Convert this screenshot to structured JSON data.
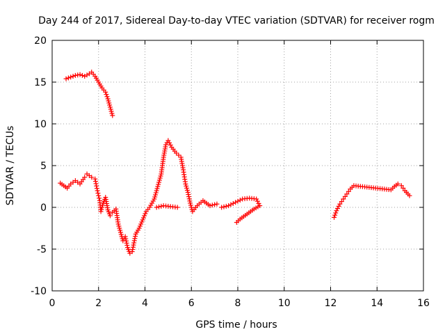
{
  "chart_data": {
    "type": "scatter",
    "title": "Day 244 of 2017, Sidereal Day-to-day VTEC variation (SDTVAR) for receiver rogm",
    "xlabel": "GPS time / hours",
    "ylabel": "SDTVAR / TECUs",
    "xlim": [
      0,
      16
    ],
    "ylim": [
      -10,
      20
    ],
    "xticks": [
      0,
      2,
      4,
      6,
      8,
      10,
      12,
      14,
      16
    ],
    "yticks": [
      -10,
      -5,
      0,
      5,
      10,
      15,
      20
    ],
    "xtick_labels": [
      "0",
      "2",
      "4",
      "6",
      "8",
      "10",
      "12",
      "14",
      "16"
    ],
    "ytick_labels": [
      "-10",
      "-5",
      "0",
      "5",
      "10",
      "15",
      "20"
    ],
    "grid": true,
    "marker": "+",
    "color": "#ff0000",
    "series": [
      {
        "values": [
          [
            0.6,
            15.4
          ],
          [
            0.8,
            15.6
          ],
          [
            1.0,
            15.8
          ],
          [
            1.2,
            15.9
          ],
          [
            1.4,
            15.7
          ],
          [
            1.6,
            16.0
          ],
          [
            1.7,
            16.2
          ],
          [
            1.85,
            15.7
          ],
          [
            2.0,
            15.0
          ],
          [
            2.15,
            14.3
          ],
          [
            2.3,
            13.8
          ],
          [
            2.4,
            13.0
          ],
          [
            2.5,
            12.0
          ],
          [
            2.6,
            11.0
          ],
          [
            0.35,
            2.9
          ],
          [
            0.5,
            2.6
          ],
          [
            0.65,
            2.3
          ],
          [
            0.8,
            2.8
          ],
          [
            1.0,
            3.2
          ],
          [
            1.2,
            2.8
          ],
          [
            1.4,
            3.6
          ],
          [
            1.5,
            4.0
          ],
          [
            1.7,
            3.6
          ],
          [
            1.85,
            3.4
          ],
          [
            1.95,
            2.0
          ],
          [
            2.05,
            0.8
          ],
          [
            2.1,
            -0.5
          ],
          [
            2.2,
            0.5
          ],
          [
            2.3,
            1.2
          ],
          [
            2.4,
            -0.3
          ],
          [
            2.5,
            -1.0
          ],
          [
            2.6,
            -0.6
          ],
          [
            2.75,
            -0.2
          ],
          [
            2.85,
            -2.0
          ],
          [
            2.95,
            -3.0
          ],
          [
            3.05,
            -4.0
          ],
          [
            3.15,
            -3.5
          ],
          [
            3.25,
            -4.8
          ],
          [
            3.35,
            -5.5
          ],
          [
            3.45,
            -5.3
          ],
          [
            3.6,
            -3.2
          ],
          [
            3.75,
            -2.5
          ],
          [
            3.9,
            -1.5
          ],
          [
            4.05,
            -0.5
          ],
          [
            4.2,
            0.0
          ],
          [
            4.4,
            1.0
          ],
          [
            4.55,
            2.5
          ],
          [
            4.7,
            4.0
          ],
          [
            4.8,
            6.0
          ],
          [
            4.9,
            7.5
          ],
          [
            5.0,
            8.0
          ],
          [
            5.15,
            7.2
          ],
          [
            5.35,
            6.5
          ],
          [
            5.55,
            6.0
          ],
          [
            5.65,
            4.5
          ],
          [
            5.75,
            2.8
          ],
          [
            5.85,
            1.8
          ],
          [
            5.95,
            0.5
          ],
          [
            6.05,
            -0.5
          ],
          [
            6.25,
            0.2
          ],
          [
            6.5,
            0.8
          ],
          [
            6.8,
            0.2
          ],
          [
            7.1,
            0.4
          ],
          [
            4.5,
            0.0
          ],
          [
            4.8,
            0.2
          ],
          [
            5.1,
            0.1
          ],
          [
            5.4,
            0.0
          ],
          [
            7.3,
            0.0
          ],
          [
            7.6,
            0.2
          ],
          [
            7.9,
            0.6
          ],
          [
            8.2,
            1.0
          ],
          [
            8.5,
            1.1
          ],
          [
            8.8,
            1.0
          ],
          [
            8.95,
            0.2
          ],
          [
            8.7,
            -0.2
          ],
          [
            8.4,
            -0.8
          ],
          [
            8.1,
            -1.4
          ],
          [
            7.95,
            -1.8
          ],
          [
            12.15,
            -1.2
          ],
          [
            12.25,
            -0.4
          ],
          [
            12.4,
            0.4
          ],
          [
            12.55,
            1.0
          ],
          [
            12.7,
            1.6
          ],
          [
            12.85,
            2.2
          ],
          [
            13.0,
            2.6
          ],
          [
            14.6,
            2.1
          ],
          [
            14.75,
            2.5
          ],
          [
            14.9,
            2.8
          ],
          [
            15.05,
            2.6
          ],
          [
            15.2,
            2.0
          ],
          [
            15.4,
            1.4
          ]
        ]
      }
    ]
  }
}
